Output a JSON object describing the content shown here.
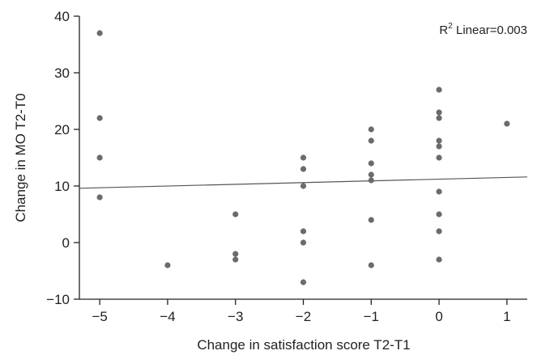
{
  "chart_data": {
    "type": "scatter",
    "title": "",
    "xlabel": "Change in satisfaction score T2-T1",
    "ylabel": "Change in MO T2-T0",
    "xlim": [
      -5.3,
      1.3
    ],
    "ylim": [
      -10,
      40
    ],
    "x_ticks": [
      -5,
      -4,
      -3,
      -2,
      -1,
      0,
      1
    ],
    "y_ticks": [
      -10,
      0,
      10,
      20,
      30,
      40
    ],
    "x_tick_labels": [
      "−5",
      "−4",
      "−3",
      "−2",
      "−1",
      "0",
      "1"
    ],
    "y_tick_labels": [
      "−10",
      "0",
      "10",
      "20",
      "30",
      "40"
    ],
    "grid": false,
    "annotation": {
      "r_prefix": "R",
      "r_sup": "2",
      "text": " Linear=0.003"
    },
    "fit_line": {
      "x": [
        -5.3,
        1.3
      ],
      "y": [
        9.6,
        11.6
      ]
    },
    "colors": {
      "point": "#6b6b6b",
      "line": "#555555",
      "axis": "#222222"
    },
    "points": [
      {
        "x": -5,
        "y": 37
      },
      {
        "x": -5,
        "y": 22
      },
      {
        "x": -5,
        "y": 15
      },
      {
        "x": -5,
        "y": 8
      },
      {
        "x": -4,
        "y": -4
      },
      {
        "x": -3,
        "y": 5
      },
      {
        "x": -3,
        "y": -2
      },
      {
        "x": -3,
        "y": -3
      },
      {
        "x": -2,
        "y": 15
      },
      {
        "x": -2,
        "y": 13
      },
      {
        "x": -2,
        "y": 10
      },
      {
        "x": -2,
        "y": 2
      },
      {
        "x": -2,
        "y": 0
      },
      {
        "x": -2,
        "y": -7
      },
      {
        "x": -1,
        "y": 20
      },
      {
        "x": -1,
        "y": 18
      },
      {
        "x": -1,
        "y": 14
      },
      {
        "x": -1,
        "y": 12
      },
      {
        "x": -1,
        "y": 11
      },
      {
        "x": -1,
        "y": 4
      },
      {
        "x": -1,
        "y": -4
      },
      {
        "x": 0,
        "y": 27
      },
      {
        "x": 0,
        "y": 23
      },
      {
        "x": 0,
        "y": 22
      },
      {
        "x": 0,
        "y": 18
      },
      {
        "x": 0,
        "y": 17
      },
      {
        "x": 0,
        "y": 15
      },
      {
        "x": 0,
        "y": 9
      },
      {
        "x": 0,
        "y": 5
      },
      {
        "x": 0,
        "y": 2
      },
      {
        "x": 0,
        "y": -3
      },
      {
        "x": 1,
        "y": 21
      }
    ]
  }
}
